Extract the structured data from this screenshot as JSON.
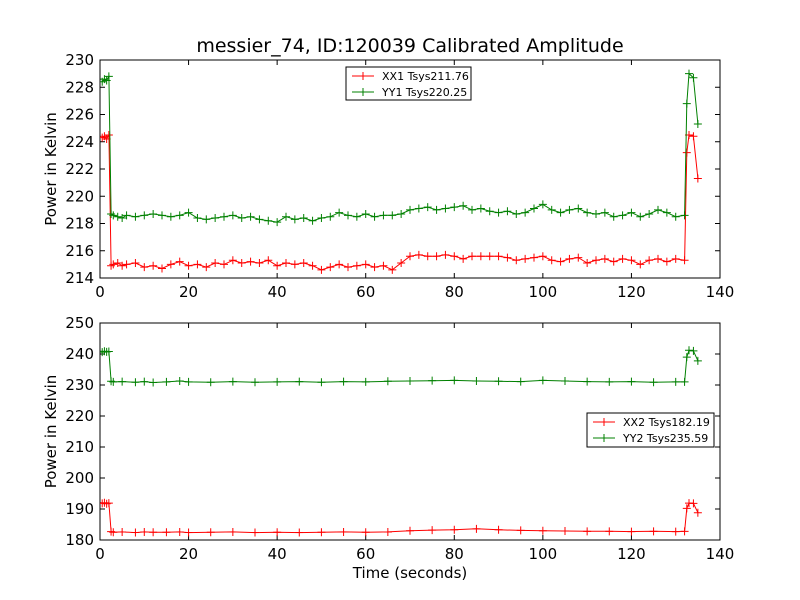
{
  "chart_data": [
    {
      "type": "line",
      "title": "messier_74, ID:120039 Calibrated Amplitude",
      "xlabel": "",
      "ylabel": "Power in Kelvin",
      "xlim": [
        0,
        140
      ],
      "ylim": [
        214,
        230
      ],
      "xticks": [
        0,
        20,
        40,
        60,
        80,
        100,
        120,
        140
      ],
      "yticks": [
        214,
        216,
        218,
        220,
        222,
        224,
        226,
        228,
        230
      ],
      "grid": false,
      "legend": "top-center",
      "series": [
        {
          "name": "XX1 Tsys211.76",
          "color": "#ff0000",
          "marker": "+",
          "points": [
            [
              0.5,
              224.3
            ],
            [
              1,
              224.4
            ],
            [
              1.5,
              224.2
            ],
            [
              2,
              224.5
            ],
            [
              2.5,
              214.9
            ],
            [
              3,
              215.0
            ],
            [
              4,
              215.1
            ],
            [
              5,
              214.9
            ],
            [
              6,
              215.0
            ],
            [
              8,
              215.1
            ],
            [
              10,
              214.8
            ],
            [
              12,
              214.9
            ],
            [
              14,
              214.7
            ],
            [
              16,
              215.0
            ],
            [
              18,
              215.2
            ],
            [
              20,
              214.9
            ],
            [
              22,
              215.0
            ],
            [
              24,
              214.8
            ],
            [
              26,
              215.1
            ],
            [
              28,
              215.0
            ],
            [
              30,
              215.3
            ],
            [
              32,
              215.1
            ],
            [
              34,
              215.2
            ],
            [
              36,
              215.1
            ],
            [
              38,
              215.3
            ],
            [
              40,
              214.9
            ],
            [
              42,
              215.1
            ],
            [
              44,
              215.0
            ],
            [
              46,
              215.1
            ],
            [
              48,
              214.9
            ],
            [
              50,
              214.6
            ],
            [
              52,
              214.8
            ],
            [
              54,
              215.0
            ],
            [
              56,
              214.8
            ],
            [
              58,
              214.9
            ],
            [
              60,
              215.0
            ],
            [
              62,
              214.8
            ],
            [
              64,
              214.9
            ],
            [
              66,
              214.6
            ],
            [
              68,
              215.1
            ],
            [
              70,
              215.6
            ],
            [
              72,
              215.7
            ],
            [
              74,
              215.6
            ],
            [
              76,
              215.6
            ],
            [
              78,
              215.7
            ],
            [
              80,
              215.6
            ],
            [
              82,
              215.4
            ],
            [
              84,
              215.6
            ],
            [
              86,
              215.6
            ],
            [
              88,
              215.6
            ],
            [
              90,
              215.6
            ],
            [
              92,
              215.5
            ],
            [
              94,
              215.3
            ],
            [
              96,
              215.4
            ],
            [
              98,
              215.5
            ],
            [
              100,
              215.6
            ],
            [
              102,
              215.3
            ],
            [
              104,
              215.2
            ],
            [
              106,
              215.4
            ],
            [
              108,
              215.5
            ],
            [
              110,
              215.1
            ],
            [
              112,
              215.3
            ],
            [
              114,
              215.4
            ],
            [
              116,
              215.2
            ],
            [
              118,
              215.4
            ],
            [
              120,
              215.3
            ],
            [
              122,
              215.0
            ],
            [
              124,
              215.3
            ],
            [
              126,
              215.4
            ],
            [
              128,
              215.2
            ],
            [
              130,
              215.4
            ],
            [
              132,
              215.3
            ],
            [
              132.5,
              223.2
            ],
            [
              133,
              224.5
            ],
            [
              134,
              224.4
            ],
            [
              135,
              221.3
            ]
          ]
        },
        {
          "name": "YY1 Tsys220.25",
          "color": "#008000",
          "marker": "+",
          "points": [
            [
              0.5,
              228.4
            ],
            [
              1,
              228.6
            ],
            [
              1.5,
              228.5
            ],
            [
              2,
              228.8
            ],
            [
              2.5,
              218.7
            ],
            [
              3,
              218.6
            ],
            [
              4,
              218.5
            ],
            [
              5,
              218.4
            ],
            [
              6,
              218.6
            ],
            [
              8,
              218.5
            ],
            [
              10,
              218.6
            ],
            [
              12,
              218.7
            ],
            [
              14,
              218.6
            ],
            [
              16,
              218.5
            ],
            [
              18,
              218.6
            ],
            [
              20,
              218.8
            ],
            [
              22,
              218.4
            ],
            [
              24,
              218.3
            ],
            [
              26,
              218.4
            ],
            [
              28,
              218.5
            ],
            [
              30,
              218.6
            ],
            [
              32,
              218.4
            ],
            [
              34,
              218.5
            ],
            [
              36,
              218.3
            ],
            [
              38,
              218.2
            ],
            [
              40,
              218.1
            ],
            [
              42,
              218.5
            ],
            [
              44,
              218.3
            ],
            [
              46,
              218.4
            ],
            [
              48,
              218.2
            ],
            [
              50,
              218.4
            ],
            [
              52,
              218.5
            ],
            [
              54,
              218.8
            ],
            [
              56,
              218.6
            ],
            [
              58,
              218.5
            ],
            [
              60,
              218.7
            ],
            [
              62,
              218.5
            ],
            [
              64,
              218.6
            ],
            [
              66,
              218.6
            ],
            [
              68,
              218.7
            ],
            [
              70,
              219.0
            ],
            [
              72,
              219.1
            ],
            [
              74,
              219.2
            ],
            [
              76,
              219.0
            ],
            [
              78,
              219.1
            ],
            [
              80,
              219.2
            ],
            [
              82,
              219.3
            ],
            [
              84,
              219.0
            ],
            [
              86,
              219.1
            ],
            [
              88,
              218.9
            ],
            [
              90,
              218.8
            ],
            [
              92,
              218.9
            ],
            [
              94,
              218.7
            ],
            [
              96,
              218.8
            ],
            [
              98,
              219.1
            ],
            [
              100,
              219.4
            ],
            [
              102,
              219.0
            ],
            [
              104,
              218.8
            ],
            [
              106,
              219.0
            ],
            [
              108,
              219.1
            ],
            [
              110,
              218.8
            ],
            [
              112,
              218.7
            ],
            [
              114,
              218.8
            ],
            [
              116,
              218.5
            ],
            [
              118,
              218.6
            ],
            [
              120,
              218.8
            ],
            [
              122,
              218.5
            ],
            [
              124,
              218.7
            ],
            [
              126,
              219.0
            ],
            [
              128,
              218.8
            ],
            [
              130,
              218.5
            ],
            [
              132,
              218.6
            ],
            [
              132.5,
              226.8
            ],
            [
              133,
              229.0
            ],
            [
              134,
              228.7
            ],
            [
              135,
              225.3
            ]
          ]
        }
      ]
    },
    {
      "type": "line",
      "title": "",
      "xlabel": "Time (seconds)",
      "ylabel": "Power in Kelvin",
      "xlim": [
        0,
        140
      ],
      "ylim": [
        180,
        250
      ],
      "xticks": [
        0,
        20,
        40,
        60,
        80,
        100,
        120,
        140
      ],
      "yticks": [
        180,
        190,
        200,
        210,
        220,
        230,
        240,
        250
      ],
      "grid": false,
      "legend": "center-right",
      "series": [
        {
          "name": "XX2 Tsys182.19",
          "color": "#ff0000",
          "marker": "+",
          "points": [
            [
              0.5,
              191.8
            ],
            [
              1,
              192.0
            ],
            [
              1.5,
              191.7
            ],
            [
              2,
              191.9
            ],
            [
              2.5,
              182.7
            ],
            [
              3,
              182.5
            ],
            [
              5,
              182.6
            ],
            [
              8,
              182.4
            ],
            [
              10,
              182.6
            ],
            [
              12,
              182.5
            ],
            [
              15,
              182.5
            ],
            [
              18,
              182.6
            ],
            [
              20,
              182.4
            ],
            [
              25,
              182.5
            ],
            [
              30,
              182.6
            ],
            [
              35,
              182.4
            ],
            [
              40,
              182.5
            ],
            [
              45,
              182.4
            ],
            [
              50,
              182.5
            ],
            [
              55,
              182.6
            ],
            [
              60,
              182.5
            ],
            [
              65,
              182.6
            ],
            [
              70,
              183.0
            ],
            [
              75,
              183.2
            ],
            [
              80,
              183.3
            ],
            [
              85,
              183.6
            ],
            [
              90,
              183.3
            ],
            [
              95,
              183.1
            ],
            [
              100,
              183.0
            ],
            [
              105,
              182.9
            ],
            [
              110,
              182.8
            ],
            [
              115,
              182.8
            ],
            [
              120,
              182.7
            ],
            [
              125,
              182.8
            ],
            [
              130,
              182.7
            ],
            [
              132,
              182.8
            ],
            [
              132.5,
              190.2
            ],
            [
              133,
              191.9
            ],
            [
              134,
              191.8
            ],
            [
              135,
              188.8
            ]
          ]
        },
        {
          "name": "YY2 Tsys235.59",
          "color": "#008000",
          "marker": "+",
          "points": [
            [
              0.5,
              240.6
            ],
            [
              1,
              240.9
            ],
            [
              1.5,
              240.7
            ],
            [
              2,
              240.8
            ],
            [
              2.5,
              231.2
            ],
            [
              3,
              231.0
            ],
            [
              5,
              231.1
            ],
            [
              8,
              230.9
            ],
            [
              10,
              231.1
            ],
            [
              12,
              230.8
            ],
            [
              15,
              231.0
            ],
            [
              18,
              231.3
            ],
            [
              20,
              231.0
            ],
            [
              25,
              230.9
            ],
            [
              30,
              231.1
            ],
            [
              35,
              230.9
            ],
            [
              40,
              231.0
            ],
            [
              45,
              231.1
            ],
            [
              50,
              230.9
            ],
            [
              55,
              231.1
            ],
            [
              60,
              231.0
            ],
            [
              65,
              231.2
            ],
            [
              70,
              231.3
            ],
            [
              75,
              231.4
            ],
            [
              80,
              231.5
            ],
            [
              85,
              231.3
            ],
            [
              90,
              231.2
            ],
            [
              95,
              231.1
            ],
            [
              100,
              231.5
            ],
            [
              105,
              231.3
            ],
            [
              110,
              231.1
            ],
            [
              115,
              231.0
            ],
            [
              120,
              231.1
            ],
            [
              125,
              230.9
            ],
            [
              130,
              231.0
            ],
            [
              132,
              231.0
            ],
            [
              132.5,
              239.0
            ],
            [
              133,
              241.2
            ],
            [
              134,
              241.0
            ],
            [
              135,
              237.8
            ]
          ]
        }
      ]
    }
  ]
}
